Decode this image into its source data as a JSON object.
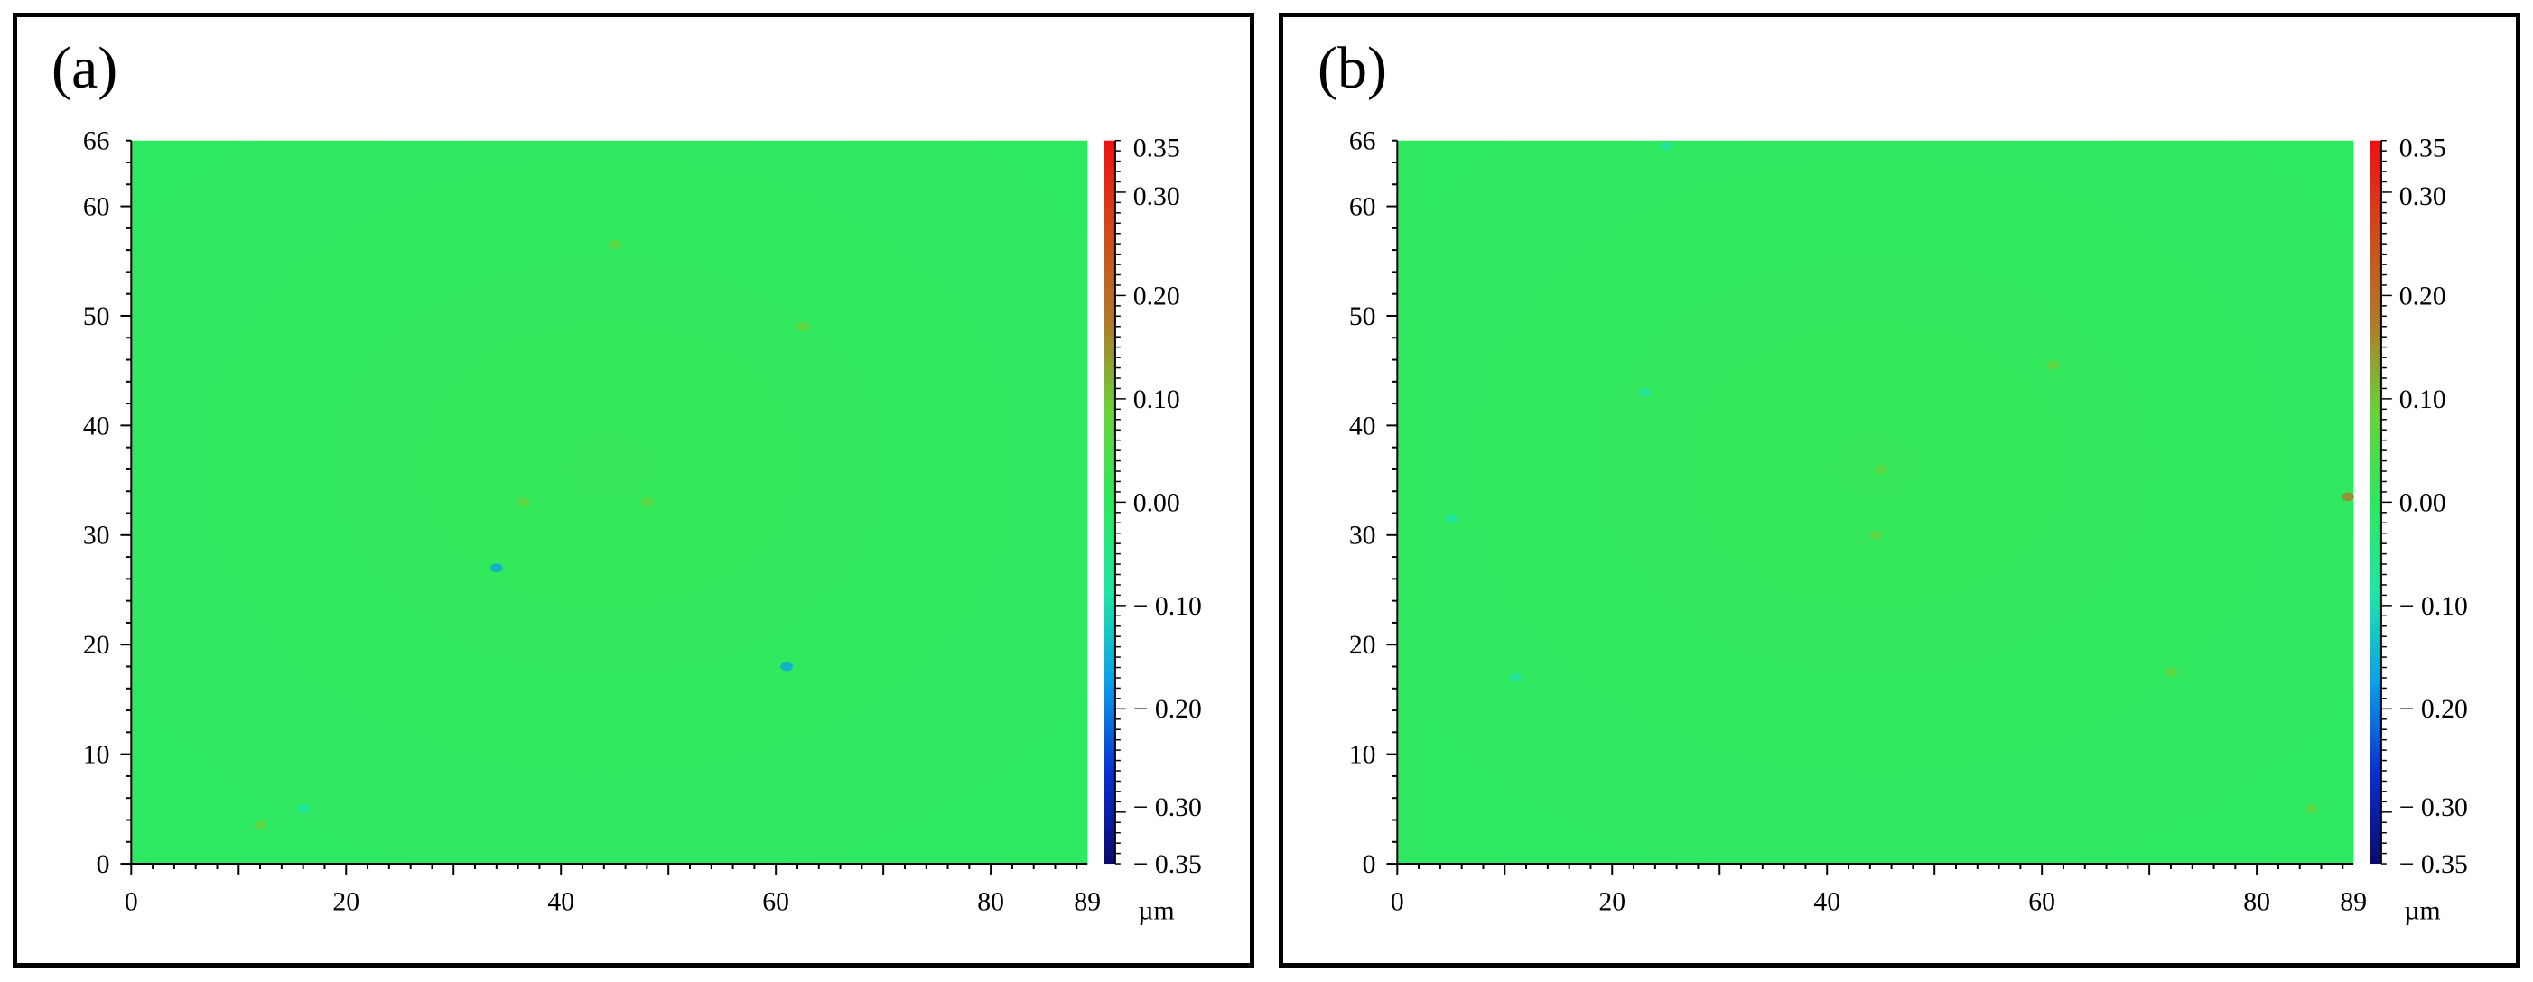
{
  "chart_data": [
    {
      "type": "heatmap",
      "panel_label": "(a)",
      "x_ticks": [
        "0",
        "20",
        "40",
        "60",
        "80",
        "89"
      ],
      "x_tick_values": [
        0,
        20,
        40,
        60,
        80,
        89
      ],
      "x_unit": "µm",
      "xlim": [
        0,
        89
      ],
      "y_ticks": [
        "0",
        "10",
        "20",
        "30",
        "40",
        "50",
        "60",
        "66"
      ],
      "y_tick_values": [
        0,
        10,
        20,
        30,
        40,
        50,
        60,
        66
      ],
      "ylim": [
        0,
        66
      ],
      "colorbar_ticks": [
        "0.35",
        "0.30",
        "0.20",
        "0.10",
        "0.00",
        "− 0.10",
        "− 0.20",
        "− 0.30",
        "− 0.35"
      ],
      "colorbar_tick_values": [
        0.35,
        0.3,
        0.2,
        0.1,
        0.0,
        -0.1,
        -0.2,
        -0.3,
        -0.35
      ],
      "zlim": [
        -0.35,
        0.35
      ],
      "colormap": [
        "#0a0a6e",
        "#0a2fd0",
        "#0aa0e8",
        "#1fe6a8",
        "#2ce85e",
        "#6ad23a",
        "#b07a2a",
        "#d04a1c",
        "#f01010"
      ],
      "surface_color": "#2ee863",
      "features": [
        {
          "x": 12,
          "y": 3.5,
          "z": 0.08
        },
        {
          "x": 16,
          "y": 5,
          "z": -0.12
        },
        {
          "x": 36.5,
          "y": 33,
          "z": 0.1
        },
        {
          "x": 34,
          "y": 27,
          "z": -0.15
        },
        {
          "x": 61,
          "y": 18,
          "z": -0.18
        },
        {
          "x": 45,
          "y": 56.5,
          "z": 0.05
        },
        {
          "x": 62.5,
          "y": 49,
          "z": 0.05
        },
        {
          "x": 48,
          "y": 33,
          "z": 0.06
        }
      ]
    },
    {
      "type": "heatmap",
      "panel_label": "(b)",
      "x_ticks": [
        "0",
        "20",
        "40",
        "60",
        "80",
        "89"
      ],
      "x_tick_values": [
        0,
        20,
        40,
        60,
        80,
        89
      ],
      "x_unit": "µm",
      "xlim": [
        0,
        89
      ],
      "y_ticks": [
        "0",
        "10",
        "20",
        "30",
        "40",
        "50",
        "60",
        "66"
      ],
      "y_tick_values": [
        0,
        10,
        20,
        30,
        40,
        50,
        60,
        66
      ],
      "ylim": [
        0,
        66
      ],
      "colorbar_ticks": [
        "0.35",
        "0.30",
        "0.20",
        "0.10",
        "0.00",
        "− 0.10",
        "− 0.20",
        "− 0.30",
        "− 0.35"
      ],
      "colorbar_tick_values": [
        0.35,
        0.3,
        0.2,
        0.1,
        0.0,
        -0.1,
        -0.2,
        -0.3,
        -0.35
      ],
      "zlim": [
        -0.35,
        0.35
      ],
      "colormap": [
        "#0a0a6e",
        "#0a2fd0",
        "#0aa0e8",
        "#1fe6a8",
        "#2ce85e",
        "#6ad23a",
        "#b07a2a",
        "#d04a1c",
        "#f01010"
      ],
      "surface_color": "#2ee863",
      "features": [
        {
          "x": 61,
          "y": 45.5,
          "z": 0.1
        },
        {
          "x": 72,
          "y": 17.5,
          "z": 0.08
        },
        {
          "x": 85,
          "y": 5,
          "z": 0.1
        },
        {
          "x": 44.5,
          "y": 30,
          "z": 0.06
        },
        {
          "x": 45,
          "y": 36,
          "z": 0.05
        },
        {
          "x": 11,
          "y": 17,
          "z": -0.12
        },
        {
          "x": 5,
          "y": 31.5,
          "z": -0.1
        },
        {
          "x": 23,
          "y": 43,
          "z": -0.08
        },
        {
          "x": 88.5,
          "y": 33.5,
          "z": 0.15
        },
        {
          "x": 25,
          "y": 65.5,
          "z": -0.05
        }
      ]
    }
  ]
}
